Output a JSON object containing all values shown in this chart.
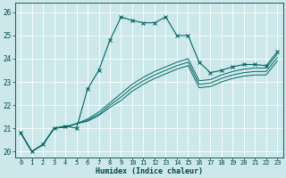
{
  "xlabel": "Humidex (Indice chaleur)",
  "bg_color": "#cce8ea",
  "grid_color": "#ffffff",
  "line_color": "#006666",
  "xlim": [
    -0.5,
    23.5
  ],
  "ylim": [
    19.75,
    26.4
  ],
  "x_ticks": [
    0,
    1,
    2,
    3,
    4,
    5,
    6,
    7,
    8,
    9,
    10,
    11,
    12,
    13,
    14,
    15,
    16,
    17,
    18,
    19,
    20,
    21,
    22,
    23
  ],
  "y_ticks": [
    20,
    21,
    22,
    23,
    24,
    25,
    26
  ],
  "series_main": [
    20.8,
    20.0,
    20.3,
    21.0,
    21.1,
    21.0,
    22.7,
    23.5,
    24.8,
    25.8,
    25.65,
    25.55,
    25.55,
    25.8,
    25.0,
    25.0,
    23.85,
    23.4,
    23.5,
    23.65,
    23.75,
    23.75,
    23.7,
    24.3
  ],
  "series_line1": [
    20.8,
    20.0,
    20.3,
    21.0,
    21.05,
    21.2,
    21.4,
    21.7,
    22.1,
    22.5,
    22.9,
    23.2,
    23.45,
    23.65,
    23.85,
    24.0,
    23.05,
    23.1,
    23.3,
    23.45,
    23.55,
    23.6,
    23.6,
    24.2
  ],
  "series_line2": [
    20.8,
    20.0,
    20.3,
    21.0,
    21.05,
    21.2,
    21.35,
    21.6,
    22.0,
    22.35,
    22.75,
    23.05,
    23.3,
    23.5,
    23.7,
    23.85,
    22.9,
    22.95,
    23.15,
    23.3,
    23.4,
    23.45,
    23.45,
    24.05
  ],
  "series_line3": [
    20.8,
    20.0,
    20.3,
    21.0,
    21.05,
    21.2,
    21.3,
    21.55,
    21.9,
    22.2,
    22.6,
    22.9,
    23.15,
    23.35,
    23.55,
    23.7,
    22.75,
    22.8,
    23.0,
    23.15,
    23.25,
    23.3,
    23.3,
    23.9
  ]
}
